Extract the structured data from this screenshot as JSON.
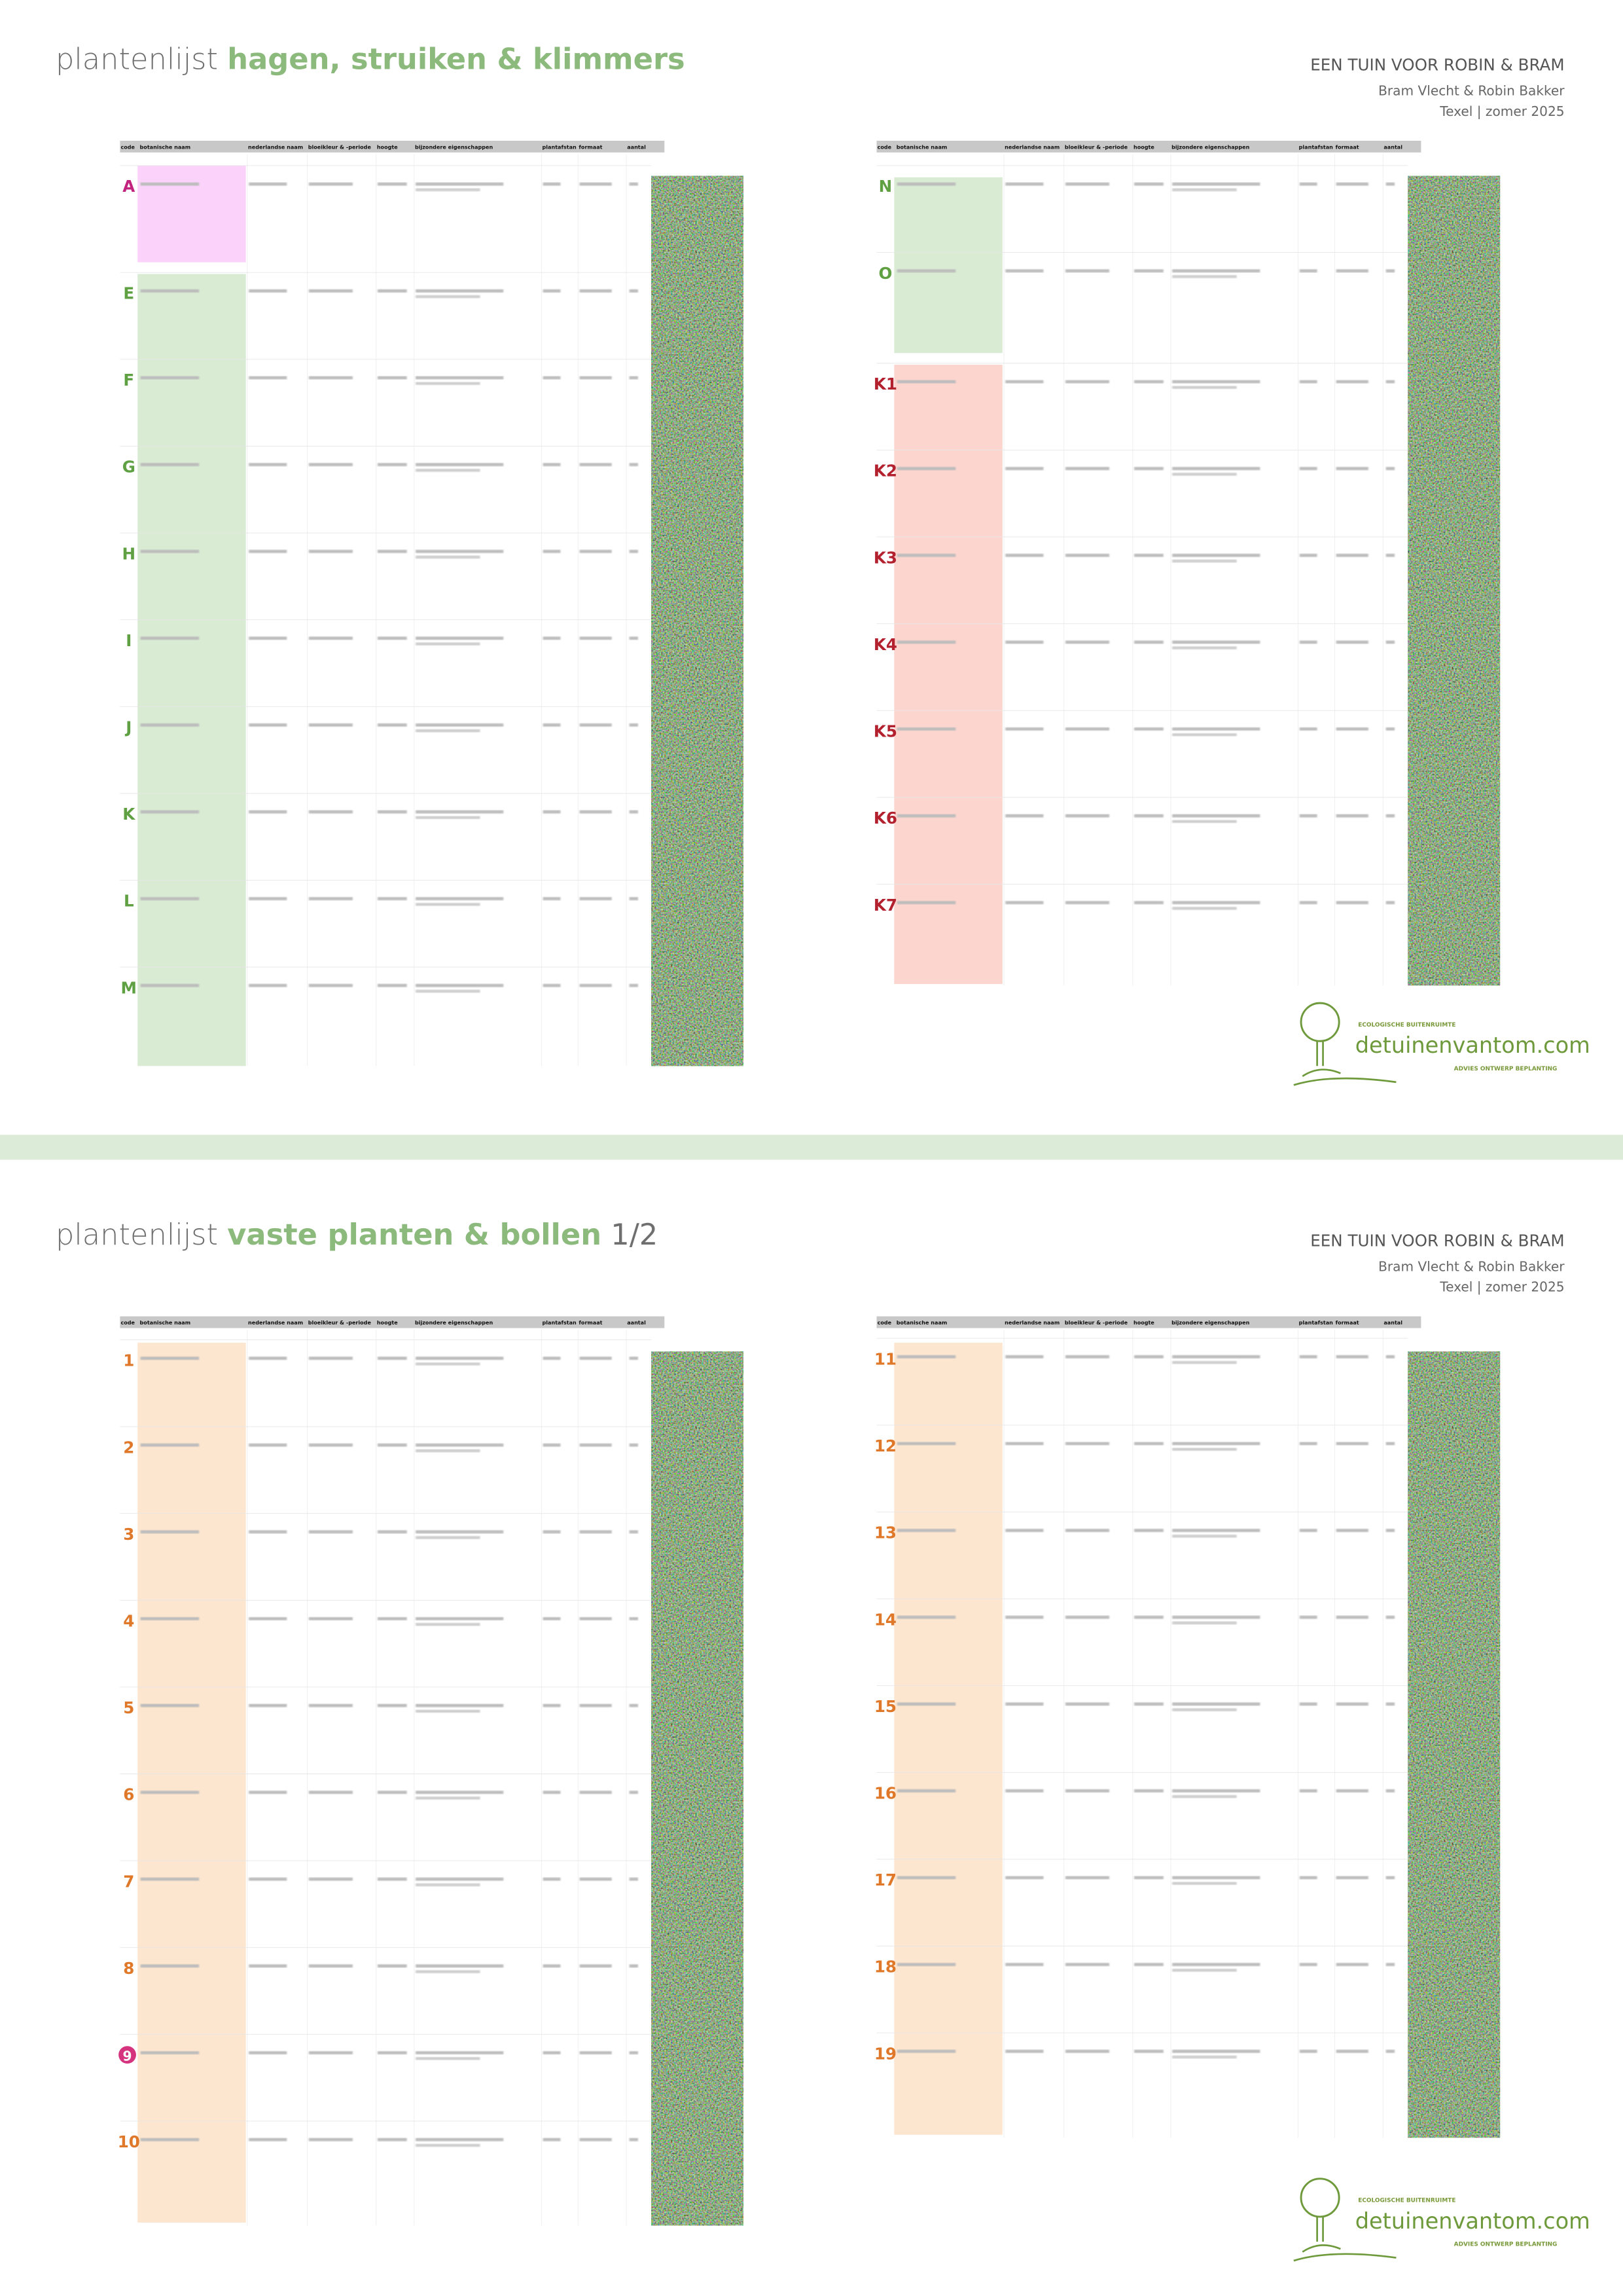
{
  "pages": [
    {
      "title": {
        "prefix": "plantenlijst",
        "accent": "hagen, struiken & klimmers"
      },
      "header": {
        "line1": "EEN TUIN VOOR ROBIN & BRAM",
        "line2": "Bram Vlecht & Robin Bakker",
        "line3": "Texel | zomer 2025"
      },
      "tables": [
        {
          "columns": [
            "code",
            "botanische naam",
            "nederlandse naam",
            "bloeikleur & -periode",
            "hoogte",
            "bijzondere eigenschappen",
            "plantafstan",
            "formaat",
            "aantal"
          ],
          "groups": [
            {
              "color": "#fbd3fa",
              "code_color": "#c2237e",
              "codes": [
                "A"
              ]
            },
            {
              "color": "#d9ebd3",
              "code_color": "#5fa043",
              "codes": [
                "E",
                "F",
                "G",
                "H",
                "I",
                "J",
                "K",
                "L",
                "M"
              ]
            }
          ]
        },
        {
          "columns": [
            "code",
            "botanische naam",
            "nederlandse naam",
            "bloeikleur & -periode",
            "hoogte",
            "bijzondere eigenschappen",
            "plantafstan",
            "formaat",
            "aantal"
          ],
          "groups": [
            {
              "color": "#d9ebd3",
              "code_color": "#5fa043",
              "codes": [
                "N",
                "O"
              ]
            },
            {
              "color": "#fcd5cf",
              "code_color": "#b3202e",
              "codes": [
                "K1",
                "K2",
                "K3",
                "K4",
                "K5",
                "K6",
                "K7"
              ]
            }
          ]
        }
      ],
      "logo": {
        "tagline": "ECOLOGISCHE BUITENRUIMTE",
        "name": "detuinenvantom.com",
        "subline": "ADVIES ONTWERP BEPLANTING"
      }
    },
    {
      "title": {
        "prefix": "plantenlijst",
        "accent": "vaste planten & bollen",
        "suffix": "1/2"
      },
      "header": {
        "line1": "EEN TUIN VOOR ROBIN & BRAM",
        "line2": "Bram Vlecht & Robin Bakker",
        "line3": "Texel | zomer 2025"
      },
      "tables": [
        {
          "columns": [
            "code",
            "botanische naam",
            "nederlandse naam",
            "bloeikleur & -periode",
            "hoogte",
            "bijzondere eigenschappen",
            "plantafstan",
            "formaat",
            "aantal"
          ],
          "groups": [
            {
              "color": "#fde6cf",
              "code_color": "#e0782a",
              "codes": [
                "1",
                "2",
                "3",
                "4",
                "5",
                "6",
                "7",
                "8",
                "9",
                "10"
              ],
              "circled": [
                "9"
              ],
              "circle_color": "#d6337f"
            }
          ]
        },
        {
          "columns": [
            "code",
            "botanische naam",
            "nederlandse naam",
            "bloeikleur & -periode",
            "hoogte",
            "bijzondere eigenschappen",
            "plantafstan",
            "formaat",
            "aantal"
          ],
          "groups": [
            {
              "color": "#fde6cf",
              "code_color": "#e0782a",
              "codes": [
                "11",
                "12",
                "13",
                "14",
                "15",
                "16",
                "17",
                "18",
                "19"
              ]
            }
          ]
        }
      ],
      "logo": {
        "tagline": "ECOLOGISCHE BUITENRUIMTE",
        "name": "detuinenvantom.com",
        "subline": "ADVIES ONTWERP BEPLANTING"
      }
    }
  ]
}
